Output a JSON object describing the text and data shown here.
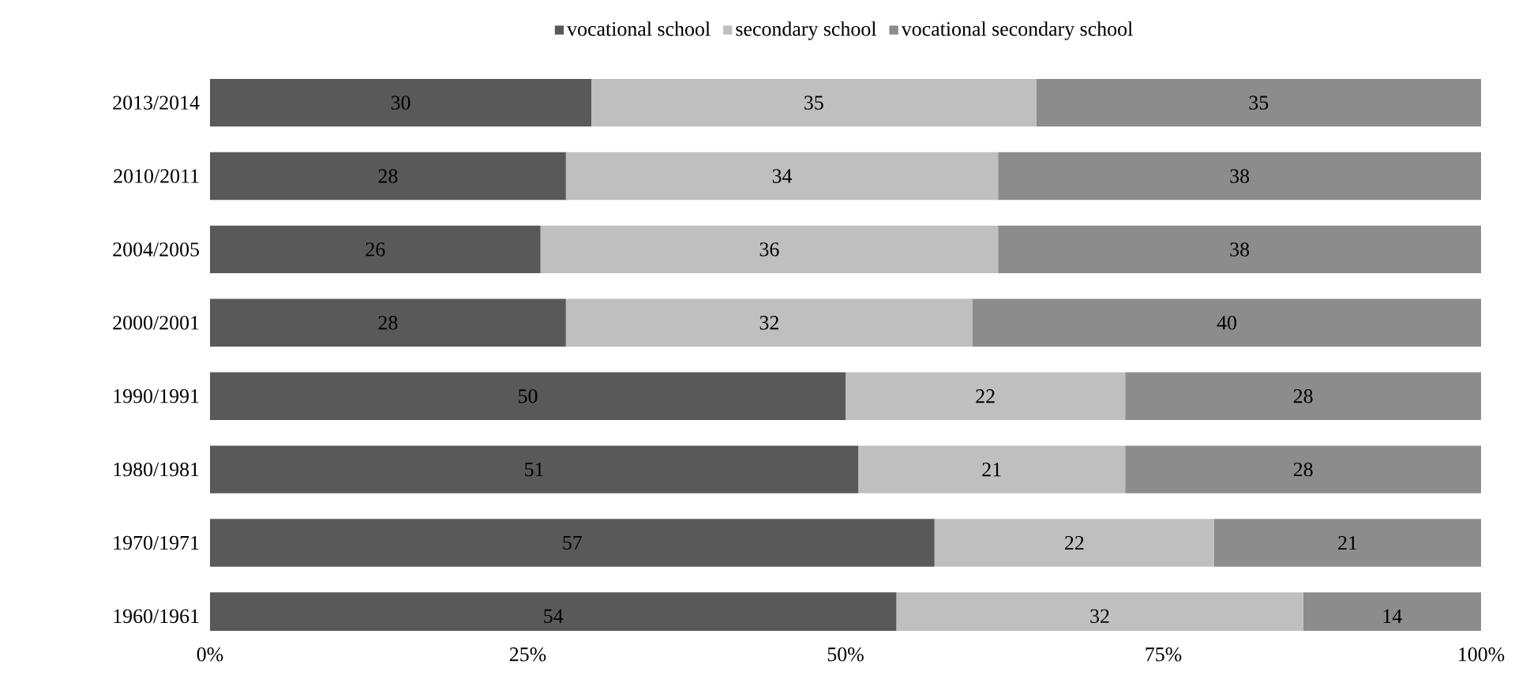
{
  "chart_data": {
    "type": "bar",
    "orientation": "horizontal",
    "stacked": true,
    "data_labels": true,
    "legend": "top",
    "categories": [
      "2013/2014",
      "2010/2011",
      "2004/2005",
      "2000/2001",
      "1990/1991",
      "1980/1981",
      "1970/1971",
      "1960/1961"
    ],
    "series": [
      {
        "name": "vocational school",
        "color": "#595959",
        "values": [
          30,
          28,
          26,
          28,
          50,
          51,
          57,
          54
        ]
      },
      {
        "name": "secondary school",
        "color": "#bfbfbf",
        "values": [
          35,
          34,
          36,
          32,
          22,
          21,
          22,
          32
        ]
      },
      {
        "name": "vocational secondary school",
        "color": "#8c8c8c",
        "values": [
          35,
          38,
          38,
          40,
          28,
          28,
          21,
          14
        ]
      }
    ],
    "xlim": [
      0,
      100
    ],
    "xticks": [
      {
        "value": 0,
        "label": "0%"
      },
      {
        "value": 25,
        "label": "25%"
      },
      {
        "value": 50,
        "label": "50%"
      },
      {
        "value": 75,
        "label": "75%"
      },
      {
        "value": 100,
        "label": "100%"
      }
    ]
  }
}
